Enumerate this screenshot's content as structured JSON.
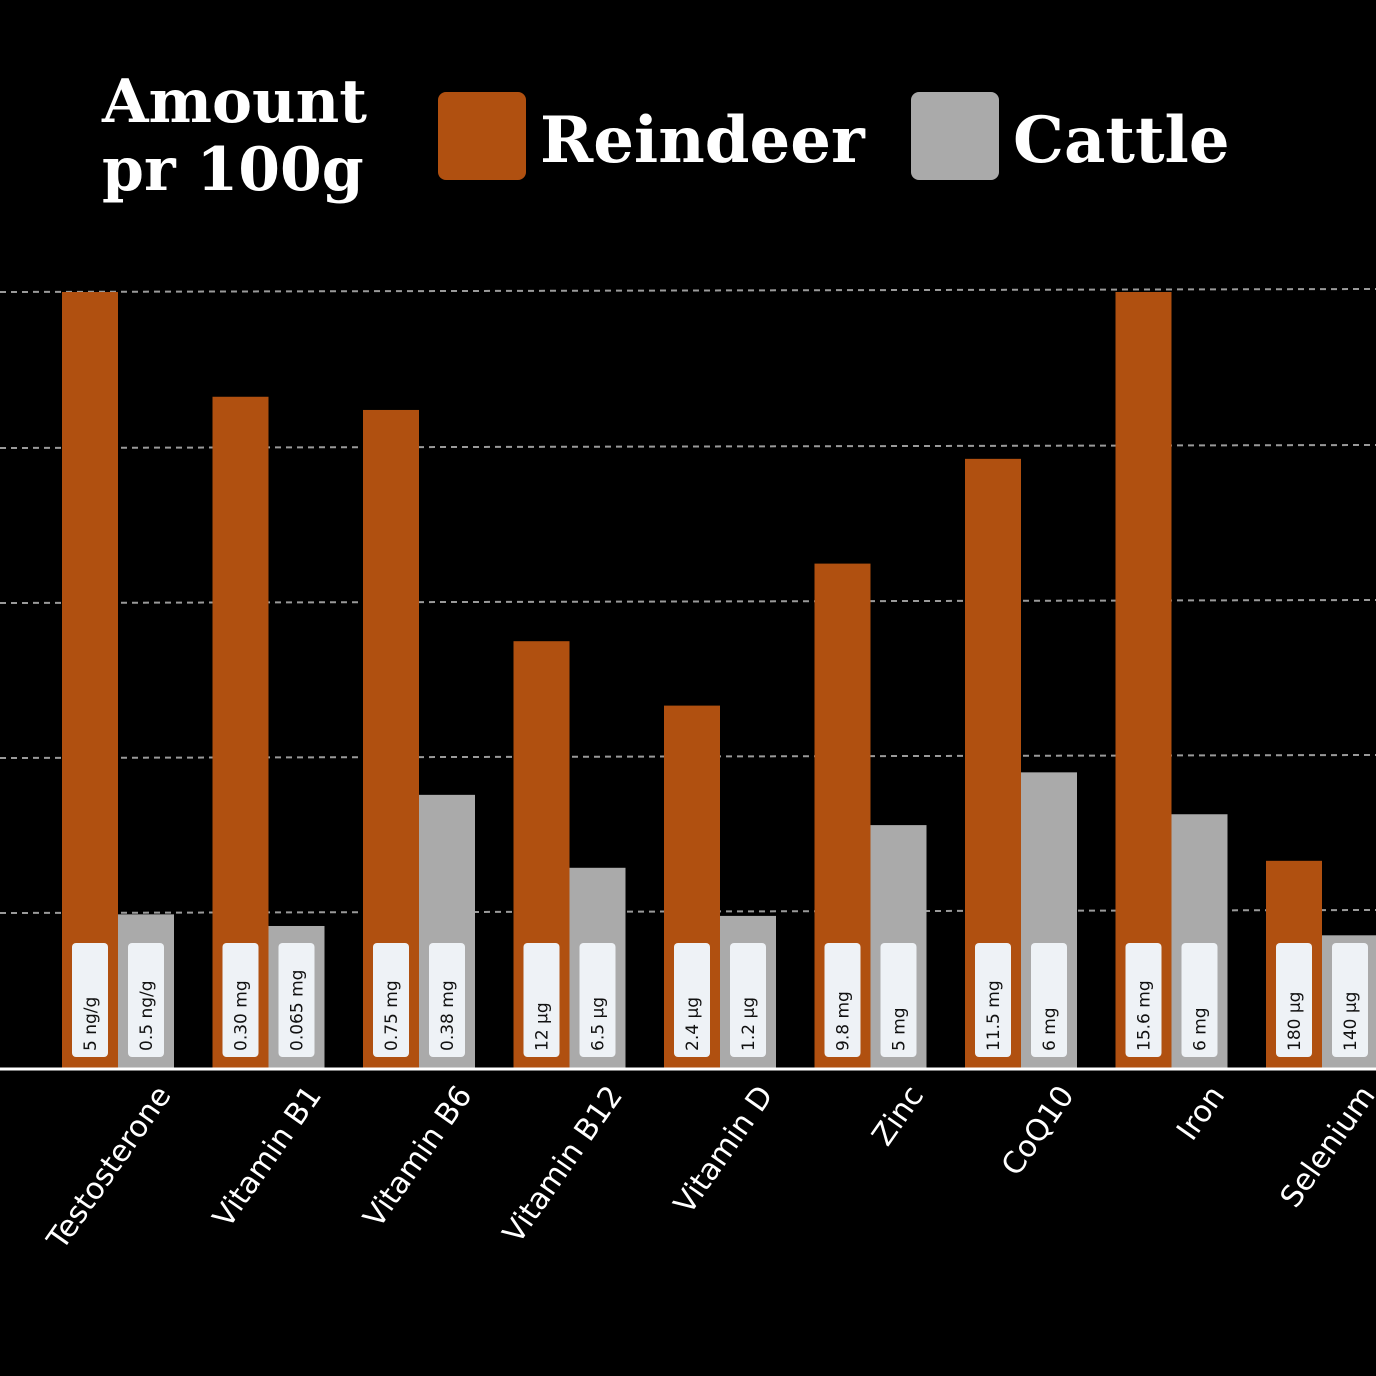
{
  "title_line1": "Amount",
  "title_line2": "pr 100g",
  "legend": [
    {
      "label": "Reindeer",
      "color": "#b05010"
    },
    {
      "label": "Cattle",
      "color": "#aaaaaa"
    }
  ],
  "colors": {
    "background": "#000000",
    "gridline": "#9a9a9a",
    "baseline": "#ffffff",
    "label_box": "#eef2f6"
  },
  "chart_data": {
    "type": "bar",
    "grouped": true,
    "value_scale": "relative height (no printed value axis); printed values shown as labels",
    "grid": true,
    "categories": [
      "Testosterone",
      "Vitamin B1",
      "Vitamin B6",
      "Vitamin B12",
      "Vitamin D",
      "Zinc",
      "CoQ10",
      "Iron",
      "Selenium"
    ],
    "series": [
      {
        "name": "Reindeer",
        "color": "#b05010",
        "relative_height": [
          1.0,
          0.865,
          0.848,
          0.55,
          0.467,
          0.65,
          0.785,
          1.0,
          0.267
        ],
        "labels": [
          "5 ng/g",
          "0.30 mg",
          "0.75 mg",
          "12 µg",
          "2.4 µg",
          "9.8 mg",
          "11.5 mg",
          "15.6 mg",
          "180 µg"
        ]
      },
      {
        "name": "Cattle",
        "color": "#aaaaaa",
        "relative_height": [
          0.198,
          0.183,
          0.352,
          0.258,
          0.196,
          0.313,
          0.381,
          0.327,
          0.171
        ],
        "labels": [
          "0.5 ng/g",
          "0.065 mg",
          "0.38 mg",
          "6.5 µg",
          "1.2 µg",
          "5 mg",
          "6 mg",
          "6 mg",
          "140 µg"
        ]
      }
    ]
  }
}
